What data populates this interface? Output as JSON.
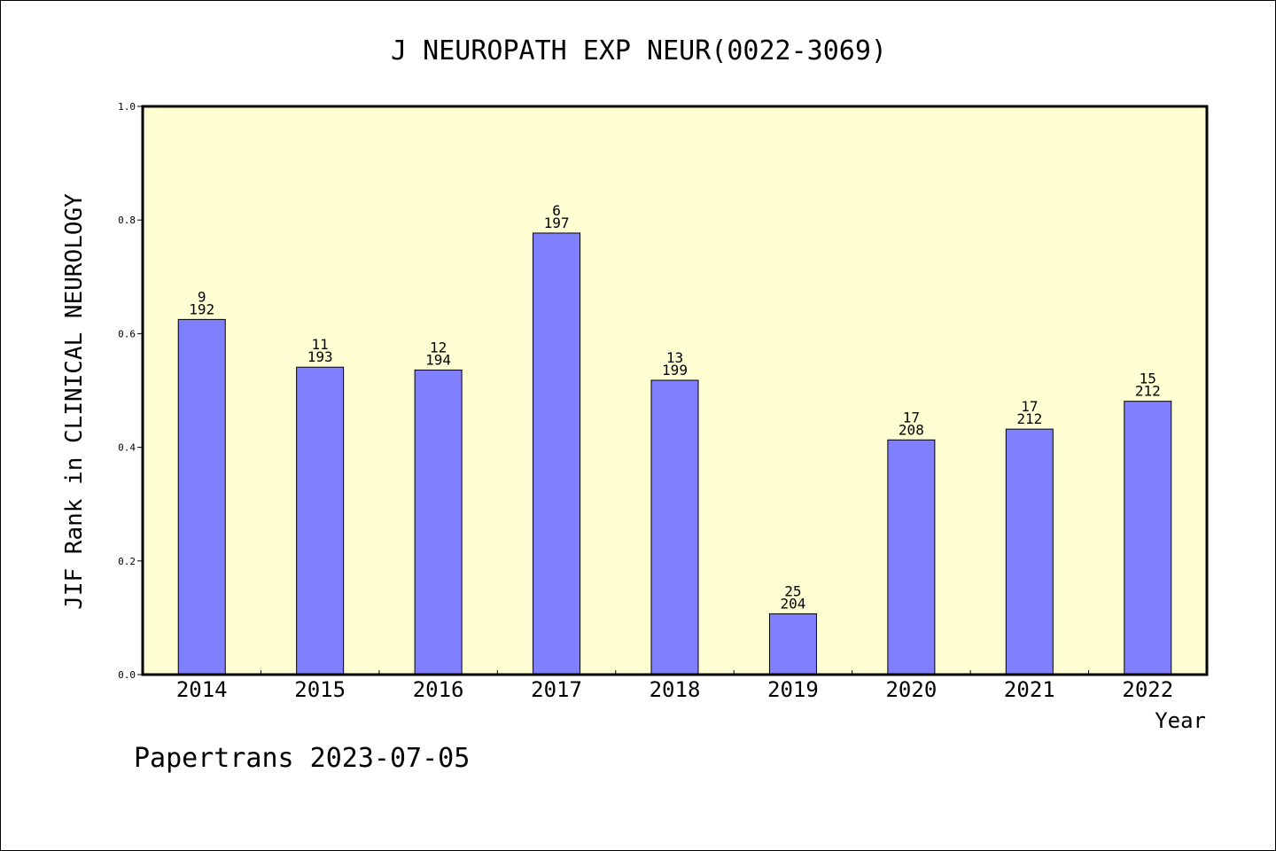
{
  "chart_data": {
    "type": "bar",
    "title": "J NEUROPATH EXP NEUR(0022-3069)",
    "xlabel": "Year",
    "ylabel": "JIF Rank in CLINICAL NEUROLOGY",
    "ylim": [
      0,
      1.0
    ],
    "yticks": [
      "0.0",
      "0.2",
      "0.4",
      "0.6",
      "0.8",
      "1.0"
    ],
    "categories": [
      "2014",
      "2015",
      "2016",
      "2017",
      "2018",
      "2019",
      "2020",
      "2021",
      "2022"
    ],
    "values": [
      0.625,
      0.541,
      0.536,
      0.777,
      0.518,
      0.107,
      0.413,
      0.432,
      0.481
    ],
    "rank_labels": [
      "9",
      "11",
      "12",
      "6",
      "13",
      "25",
      "17",
      "17",
      "15"
    ],
    "total_labels": [
      "192",
      "193",
      "194",
      "197",
      "199",
      "204",
      "208",
      "212",
      "212"
    ],
    "grid": false,
    "colors": {
      "plot_background": "#ffffd3",
      "bar_fill": "#8080ff",
      "bar_stroke": "#000000"
    }
  },
  "footer": "Papertrans 2023-07-05"
}
